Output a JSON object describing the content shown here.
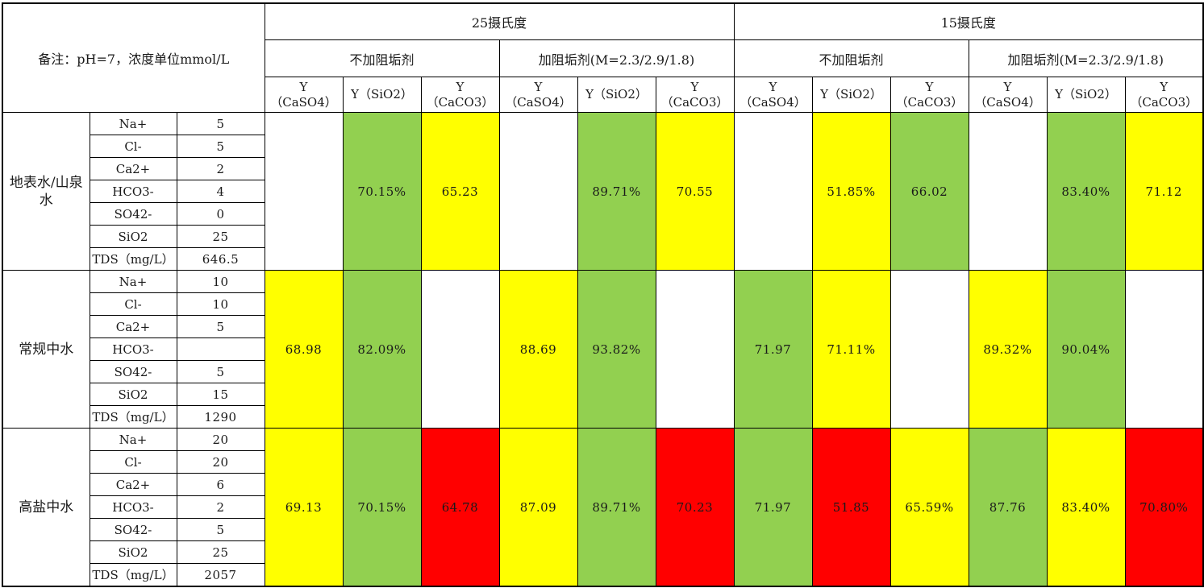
{
  "note": "备注：pH=7，浓度单位mmol/L",
  "temperatures": [
    {
      "label": "25摄氏度"
    },
    {
      "label": "15摄氏度"
    }
  ],
  "conditions": [
    {
      "label": "不加阻垢剂"
    },
    {
      "label": "加阻垢剂(M=2.3/2.9/1.8)"
    },
    {
      "label": "不加阻垢剂"
    },
    {
      "label": "加阻垢剂(M=2.3/2.9/1.8)"
    }
  ],
  "columns": [
    {
      "line1": "Y",
      "line2": "（CaSO4）"
    },
    {
      "line1": "Y（SiO2）",
      "line2": ""
    },
    {
      "line1": "Y",
      "line2": "（CaCO3）"
    },
    {
      "line1": "Y",
      "line2": "（CaSO4）"
    },
    {
      "line1": "Y（SiO2）",
      "line2": ""
    },
    {
      "line1": "Y",
      "line2": "（CaCO3）"
    },
    {
      "line1": "Y",
      "line2": "（CaSO4）"
    },
    {
      "line1": "Y（SiO2）",
      "line2": ""
    },
    {
      "line1": "Y",
      "line2": "（CaCO3）"
    },
    {
      "line1": "Y",
      "line2": "（CaSO4）"
    },
    {
      "line1": "Y（SiO2）",
      "line2": ""
    },
    {
      "line1": "Y",
      "line2": "（CaCO3）"
    }
  ],
  "colors": {
    "green": "#92d050",
    "yellow": "#ffff00",
    "red": "#ff0000",
    "white": "#ffffff"
  },
  "groups": [
    {
      "name": "地表水/山泉水",
      "ions": [
        {
          "ion": "Na+",
          "value": "5"
        },
        {
          "ion": "Cl-",
          "value": "5"
        },
        {
          "ion": "Ca2+",
          "value": "2"
        },
        {
          "ion": "HCO3-",
          "value": "4"
        },
        {
          "ion": "SO42-",
          "value": "0"
        },
        {
          "ion": "SiO2",
          "value": "25"
        },
        {
          "ion": "TDS（mg/L）",
          "value": "646.5"
        }
      ],
      "results": [
        {
          "value": "",
          "color": "white"
        },
        {
          "value": "70.15%",
          "color": "green"
        },
        {
          "value": "65.23",
          "color": "yellow"
        },
        {
          "value": "",
          "color": "white"
        },
        {
          "value": "89.71%",
          "color": "green"
        },
        {
          "value": "70.55",
          "color": "yellow"
        },
        {
          "value": "",
          "color": "white"
        },
        {
          "value": "51.85%",
          "color": "yellow"
        },
        {
          "value": "66.02",
          "color": "green"
        },
        {
          "value": "",
          "color": "white"
        },
        {
          "value": "83.40%",
          "color": "green"
        },
        {
          "value": "71.12",
          "color": "yellow"
        }
      ]
    },
    {
      "name": "常规中水",
      "ions": [
        {
          "ion": "Na+",
          "value": "10"
        },
        {
          "ion": "Cl-",
          "value": "10"
        },
        {
          "ion": "Ca2+",
          "value": "5"
        },
        {
          "ion": "HCO3-",
          "value": ""
        },
        {
          "ion": "SO42-",
          "value": "5"
        },
        {
          "ion": "SiO2",
          "value": "15"
        },
        {
          "ion": "TDS（mg/L）",
          "value": "1290"
        }
      ],
      "results": [
        {
          "value": "68.98",
          "color": "yellow"
        },
        {
          "value": "82.09%",
          "color": "green"
        },
        {
          "value": "",
          "color": "white"
        },
        {
          "value": "88.69",
          "color": "yellow"
        },
        {
          "value": "93.82%",
          "color": "green"
        },
        {
          "value": "",
          "color": "white"
        },
        {
          "value": "71.97",
          "color": "green"
        },
        {
          "value": "71.11%",
          "color": "yellow"
        },
        {
          "value": "",
          "color": "white"
        },
        {
          "value": "89.32%",
          "color": "yellow"
        },
        {
          "value": "90.04%",
          "color": "green"
        },
        {
          "value": "",
          "color": "white"
        }
      ]
    },
    {
      "name": "高盐中水",
      "ions": [
        {
          "ion": "Na+",
          "value": "20"
        },
        {
          "ion": "Cl-",
          "value": "20"
        },
        {
          "ion": "Ca2+",
          "value": "6"
        },
        {
          "ion": "HCO3-",
          "value": "2"
        },
        {
          "ion": "SO42-",
          "value": "5"
        },
        {
          "ion": "SiO2",
          "value": "25"
        },
        {
          "ion": "TDS（mg/L）",
          "value": "2057"
        }
      ],
      "results": [
        {
          "value": "69.13",
          "color": "yellow"
        },
        {
          "value": "70.15%",
          "color": "green"
        },
        {
          "value": "64.78",
          "color": "red"
        },
        {
          "value": "87.09",
          "color": "yellow"
        },
        {
          "value": "89.71%",
          "color": "green"
        },
        {
          "value": "70.23",
          "color": "red"
        },
        {
          "value": "71.97",
          "color": "green"
        },
        {
          "value": "51.85",
          "color": "red"
        },
        {
          "value": "65.59%",
          "color": "yellow"
        },
        {
          "value": "87.76",
          "color": "green"
        },
        {
          "value": "83.40%",
          "color": "yellow"
        },
        {
          "value": "70.80%",
          "color": "red"
        }
      ]
    }
  ]
}
